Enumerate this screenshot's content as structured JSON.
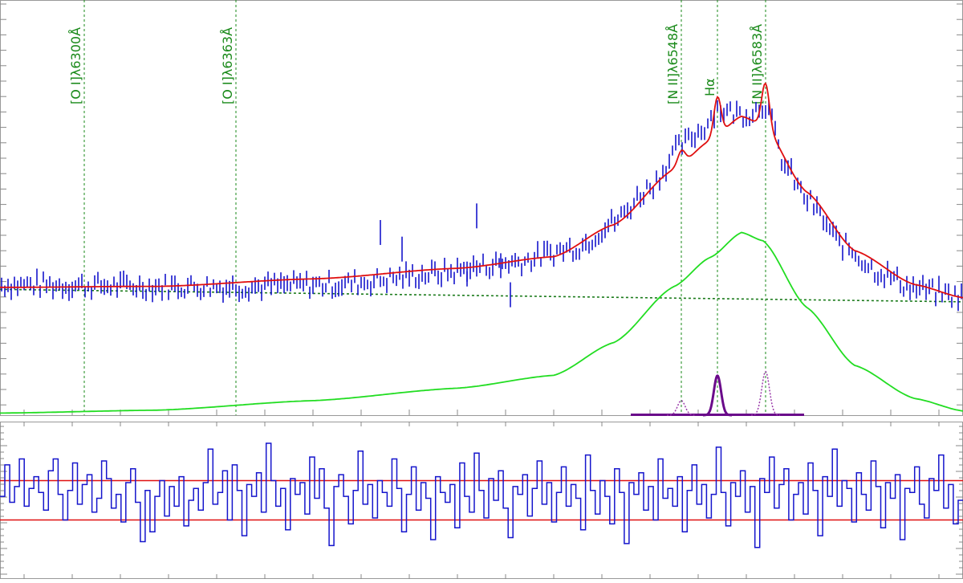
{
  "chart_data": [
    {
      "type": "line",
      "panel": "spectrum-fit",
      "title": "",
      "xlabel": "",
      "ylabel": "",
      "grid": false,
      "legend": "none",
      "xlim": [
        6265,
        6665
      ],
      "ylim": [
        0,
        100
      ],
      "line_markers": [
        {
          "label": "[O I]λ6300Å",
          "x": 6300
        },
        {
          "label": "[O I]λ6363Å",
          "x": 6363
        },
        {
          "label": "[N II]λ6548Å",
          "x": 6548
        },
        {
          "label": "Hα",
          "x": 6563
        },
        {
          "label": "[N II]λ6583Å",
          "x": 6583
        }
      ],
      "continuum": {
        "name": "",
        "style": "dotted",
        "points": [
          [
            6265,
            30.3
          ],
          [
            6665,
            27.3
          ]
        ]
      },
      "broad_component": {
        "name": "",
        "points": [
          [
            6265,
            0.5
          ],
          [
            6330,
            1.2
          ],
          [
            6395,
            3.5
          ],
          [
            6455,
            6.5
          ],
          [
            6495,
            9.6
          ],
          [
            6520,
            17.5
          ],
          [
            6545,
            31
          ],
          [
            6560,
            38
          ],
          [
            6573,
            44
          ],
          [
            6582,
            42
          ],
          [
            6600,
            26
          ],
          [
            6620,
            12
          ],
          [
            6645,
            4
          ],
          [
            6665,
            1
          ]
        ]
      },
      "narrow_components": [
        {
          "line": "Hα",
          "center": 6563,
          "peak": 9.5,
          "sigma": 1.5,
          "style": "solid"
        },
        {
          "line": "[N II]λ6548Å",
          "center": 6548,
          "peak": 3.5,
          "sigma": 1.6,
          "style": "dotted"
        },
        {
          "line": "[N II]λ6583Å",
          "center": 6583,
          "peak": 10.5,
          "sigma": 1.6,
          "style": "dotted"
        }
      ],
      "narrow_baseline": {
        "x": [
          6527,
          6599
        ],
        "y": 0
      },
      "observed_spectrum": {
        "name": "",
        "style": "error-bars",
        "error": 3.2,
        "smooth": [
          [
            6265,
            31.5
          ],
          [
            6330,
            31.0
          ],
          [
            6365,
            31.0
          ],
          [
            6405,
            31.5
          ],
          [
            6445,
            34.0
          ],
          [
            6480,
            37.0
          ],
          [
            6505,
            40.5
          ],
          [
            6520,
            46.5
          ],
          [
            6535,
            55.0
          ],
          [
            6548,
            65.0
          ],
          [
            6556,
            68.5
          ],
          [
            6563,
            74.0
          ],
          [
            6567,
            73.0
          ],
          [
            6575,
            72.5
          ],
          [
            6583,
            75.0
          ],
          [
            6591,
            60.0
          ],
          [
            6600,
            52.0
          ],
          [
            6615,
            41.0
          ],
          [
            6630,
            34.5
          ],
          [
            6645,
            30.5
          ],
          [
            6665,
            28.5
          ]
        ],
        "outliers": [
          [
            6423,
            44
          ],
          [
            6432,
            40
          ],
          [
            6459,
            34
          ],
          [
            6463,
            48
          ],
          [
            6473,
            36
          ],
          [
            6477,
            29
          ]
        ]
      },
      "model_fit": {
        "name": "",
        "equals": "continuum + broad_component + narrow_components"
      }
    },
    {
      "type": "line",
      "panel": "residuals",
      "title": "",
      "xlabel": "",
      "ylabel": "",
      "grid": false,
      "legend": "none",
      "xlim": [
        6265,
        6665
      ],
      "ylim": [
        -4,
        4
      ],
      "bands": [
        1.0,
        -1.0
      ],
      "residuals": [
        0.2,
        1.8,
        -0.1,
        0.7,
        2.1,
        -0.3,
        0.6,
        1.2,
        0.4,
        -0.5,
        1.5,
        2.1,
        0.3,
        -1.0,
        0.5,
        1.9,
        -0.2,
        0.8,
        1.3,
        -0.6,
        0.1,
        2.0,
        1.1,
        -0.4,
        0.3,
        -1.1,
        0.9,
        1.6,
        -0.1,
        -2.1,
        0.5,
        -1.6,
        0.2,
        1.0,
        -0.8,
        0.7,
        -0.3,
        1.2,
        -1.3,
        0.0,
        0.6,
        -0.5,
        0.9,
        2.6,
        -0.2,
        0.4,
        1.5,
        -1.0,
        1.8,
        0.5,
        -1.8,
        0.8,
        0.2,
        1.4,
        -0.6,
        2.9,
        1.0,
        -0.3,
        0.6,
        -1.5,
        1.1,
        0.3,
        0.9,
        -0.7,
        2.2,
        0.1,
        1.6,
        -0.4,
        -2.3,
        0.7,
        1.3,
        0.2,
        -1.2,
        0.5,
        2.5,
        -0.2,
        0.8,
        -0.9,
        1.0,
        0.4,
        -0.3,
        2.1,
        0.6,
        -1.6,
        0.3,
        1.7,
        -0.5,
        0.9,
        0.1,
        -2.0,
        1.2,
        0.4,
        -0.1,
        0.8,
        -1.4,
        1.9,
        0.2,
        -0.6,
        2.4,
        0.5,
        -0.9,
        1.1,
        0.0,
        1.5,
        -0.4,
        -1.9,
        0.7,
        0.3,
        1.3,
        -0.8,
        0.6,
        2.0,
        -0.2,
        0.9,
        -1.1,
        0.4,
        1.7,
        -0.3,
        0.8,
        0.1,
        -1.5,
        2.3,
        0.5,
        -0.7,
        1.0,
        0.2,
        -1.2,
        1.6,
        0.4,
        -2.2,
        0.9,
        0.3,
        1.4,
        -0.5,
        0.7,
        -1.0,
        2.1,
        0.1,
        0.6,
        -0.3,
        1.2,
        -1.6,
        0.5,
        1.8,
        -0.2,
        0.8,
        -0.9,
        0.3,
        2.7,
        0.4,
        -1.3,
        0.9,
        0.2,
        1.5,
        -0.6,
        0.7,
        -2.4,
        1.1,
        0.4,
        2.2,
        -0.4,
        0.8,
        1.6,
        -1.0,
        0.3,
        0.9,
        -0.7,
        1.9,
        0.5,
        -1.8,
        1.2,
        0.2,
        2.6,
        -0.3,
        1.0,
        0.6,
        -1.1,
        1.4,
        0.3,
        -0.5,
        2.0,
        0.7,
        -1.4,
        0.9,
        0.1,
        1.3,
        -2.0,
        0.6,
        0.4,
        1.7,
        -0.2,
        -0.9,
        1.1,
        0.5,
        2.3,
        -0.4,
        0.8,
        -1.2,
        0.0
      ]
    }
  ]
}
